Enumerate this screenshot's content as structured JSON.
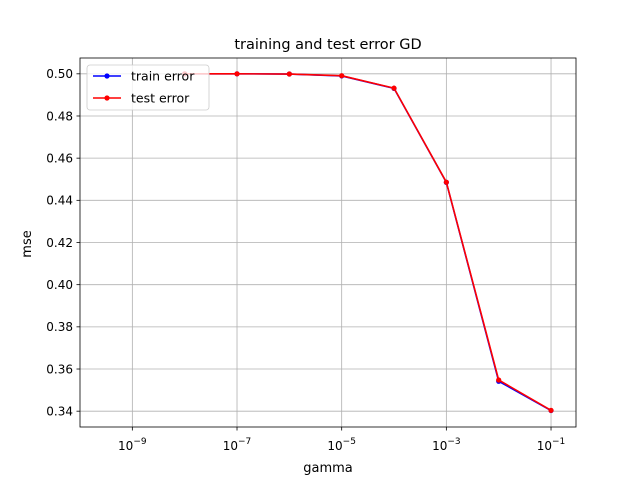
{
  "chart_data": {
    "type": "line",
    "title": "training and test error GD",
    "xlabel": "gamma",
    "ylabel": "mse",
    "xscale": "log",
    "xlim": [
      1e-10,
      0.3
    ],
    "ylim": [
      0.3325,
      0.5075
    ],
    "grid": true,
    "legend_position": "top-left",
    "x": [
      1e-08,
      1e-07,
      1e-06,
      1e-05,
      0.0001,
      0.001,
      0.01,
      0.1
    ],
    "xticks": [
      {
        "value": 1e-09,
        "base": "10",
        "exp": "−9"
      },
      {
        "value": 1e-07,
        "base": "10",
        "exp": "−7"
      },
      {
        "value": 1e-05,
        "base": "10",
        "exp": "−5"
      },
      {
        "value": 0.001,
        "base": "10",
        "exp": "−3"
      },
      {
        "value": 0.1,
        "base": "10",
        "exp": "−1"
      }
    ],
    "yticks": [
      {
        "value": 0.34,
        "label": "0.34"
      },
      {
        "value": 0.36,
        "label": "0.36"
      },
      {
        "value": 0.38,
        "label": "0.38"
      },
      {
        "value": 0.4,
        "label": "0.40"
      },
      {
        "value": 0.42,
        "label": "0.42"
      },
      {
        "value": 0.44,
        "label": "0.44"
      },
      {
        "value": 0.46,
        "label": "0.46"
      },
      {
        "value": 0.48,
        "label": "0.48"
      },
      {
        "value": 0.5,
        "label": "0.50"
      }
    ],
    "series": [
      {
        "name": "train error",
        "color": "#0000ff",
        "values": [
          0.5,
          0.5,
          0.4999,
          0.499,
          0.4931,
          0.4485,
          0.3542,
          0.3403
        ]
      },
      {
        "name": "test error",
        "color": "#ff0000",
        "values": [
          0.5,
          0.5,
          0.4999,
          0.4991,
          0.4932,
          0.4486,
          0.3548,
          0.3404
        ]
      }
    ]
  }
}
